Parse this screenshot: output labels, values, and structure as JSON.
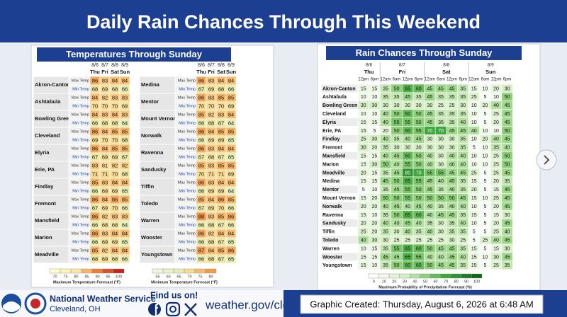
{
  "title": "Daily Rain Chances Through This Weekend",
  "temperatures": {
    "title": "Temperatures Through Sunday",
    "dates": [
      "8/6",
      "8/7",
      "8/8",
      "8/9"
    ],
    "days": [
      "Thu",
      "Fri",
      "Sat",
      "Sun"
    ],
    "row_labels": [
      "Max Temp",
      "Min Temp"
    ],
    "cities": [
      {
        "name": "Akron-Canton",
        "max": [
          86,
          83,
          84,
          84
        ],
        "min": [
          68,
          69,
          68,
          66
        ]
      },
      {
        "name": "Ashtabula",
        "max": [
          84,
          82,
          83,
          83
        ],
        "min": [
          70,
          70,
          70,
          69
        ]
      },
      {
        "name": "Bowling Green",
        "max": [
          84,
          83,
          84,
          83
        ],
        "min": [
          66,
          68,
          68,
          64
        ]
      },
      {
        "name": "Cleveland",
        "max": [
          86,
          84,
          85,
          85
        ],
        "min": [
          69,
          70,
          70,
          68
        ]
      },
      {
        "name": "Elyria",
        "max": [
          86,
          84,
          85,
          85
        ],
        "min": [
          67,
          69,
          69,
          67
        ]
      },
      {
        "name": "Erie, PA",
        "max": [
          83,
          81,
          82,
          82
        ],
        "min": [
          71,
          71,
          70,
          68
        ]
      },
      {
        "name": "Findlay",
        "max": [
          85,
          83,
          84,
          84
        ],
        "min": [
          66,
          69,
          69,
          65
        ]
      },
      {
        "name": "Fremont",
        "max": [
          86,
          84,
          86,
          85
        ],
        "min": [
          67,
          69,
          70,
          66
        ]
      },
      {
        "name": "Mansfield",
        "max": [
          86,
          82,
          83,
          83
        ],
        "min": [
          66,
          68,
          68,
          64
        ]
      },
      {
        "name": "Marion",
        "max": [
          86,
          83,
          84,
          84
        ],
        "min": [
          66,
          69,
          69,
          65
        ]
      },
      {
        "name": "Meadville",
        "max": [
          85,
          82,
          84,
          84
        ],
        "min": [
          68,
          69,
          68,
          66
        ]
      },
      {
        "name": "Medina",
        "max": [
          86,
          83,
          84,
          84
        ],
        "min": [
          67,
          69,
          68,
          66
        ]
      },
      {
        "name": "Mentor",
        "max": [
          86,
          83,
          85,
          85
        ],
        "min": [
          70,
          70,
          70,
          69
        ]
      },
      {
        "name": "Mount Vernon",
        "max": [
          85,
          82,
          83,
          84
        ],
        "min": [
          66,
          68,
          67,
          64
        ]
      },
      {
        "name": "Norwalk",
        "max": [
          86,
          84,
          85,
          85
        ],
        "min": [
          66,
          69,
          69,
          65
        ]
      },
      {
        "name": "Ravenna",
        "max": [
          86,
          83,
          84,
          84
        ],
        "min": [
          67,
          68,
          67,
          65
        ]
      },
      {
        "name": "Sandusky",
        "max": [
          85,
          83,
          85,
          85
        ],
        "min": [
          70,
          71,
          71,
          69
        ]
      },
      {
        "name": "Tiffin",
        "max": [
          86,
          83,
          84,
          84
        ],
        "min": [
          66,
          69,
          69,
          64
        ]
      },
      {
        "name": "Toledo",
        "max": [
          85,
          84,
          86,
          85
        ],
        "min": [
          67,
          69,
          70,
          66
        ]
      },
      {
        "name": "Warren",
        "max": [
          88,
          83,
          85,
          86
        ],
        "min": [
          66,
          68,
          67,
          66
        ]
      },
      {
        "name": "Wooster",
        "max": [
          86,
          82,
          84,
          84
        ],
        "min": [
          66,
          68,
          67,
          65
        ]
      },
      {
        "name": "Youngstown",
        "max": [
          87,
          84,
          85,
          86
        ],
        "min": [
          66,
          68,
          67,
          65
        ]
      }
    ],
    "legend_max": {
      "ticks": [
        70,
        75,
        80,
        85,
        90,
        95,
        100
      ],
      "label": "Maximum Temperature Forecast (°F)"
    },
    "legend_min": {
      "ticks": [
        55,
        60,
        65,
        70,
        75,
        80
      ],
      "label": "Minimum Temperature Forecast (°F)"
    }
  },
  "rain": {
    "title": "Rain Chances Through Sunday",
    "dates": [
      "8/6",
      "8/7",
      "8/8",
      "8/9"
    ],
    "days": [
      "Thu",
      "Fri",
      "Sat",
      "Sun"
    ],
    "times": [
      "12pm",
      "6pm",
      "12am",
      "6am",
      "12pm",
      "6pm",
      "12am",
      "6am",
      "12pm",
      "6pm",
      "12am",
      "6am",
      "12pm",
      "6pm"
    ],
    "cities": [
      {
        "name": "Akron-Canton",
        "values": [
          15,
          15,
          35,
          50,
          65,
          60,
          45,
          45,
          45,
          35,
          15,
          10,
          20,
          30
        ]
      },
      {
        "name": "Ashtabula",
        "values": [
          10,
          10,
          35,
          35,
          45,
          35,
          45,
          35,
          35,
          35,
          25,
          5,
          10,
          50
        ]
      },
      {
        "name": "Bowling Green",
        "values": [
          30,
          30,
          30,
          30,
          30,
          30,
          30,
          25,
          25,
          30,
          10,
          20,
          40,
          45
        ]
      },
      {
        "name": "Cleveland",
        "values": [
          10,
          10,
          40,
          50,
          60,
          50,
          45,
          35,
          35,
          35,
          10,
          5,
          25,
          45
        ]
      },
      {
        "name": "Elyria",
        "values": [
          15,
          15,
          40,
          55,
          55,
          50,
          45,
          35,
          35,
          40,
          10,
          5,
          20,
          45
        ]
      },
      {
        "name": "Erie, PA",
        "values": [
          15,
          5,
          20,
          50,
          60,
          55,
          70,
          70,
          45,
          45,
          40,
          10,
          10,
          50
        ]
      },
      {
        "name": "Findlay",
        "values": [
          25,
          30,
          40,
          35,
          40,
          45,
          30,
          30,
          30,
          35,
          10,
          20,
          40,
          45
        ]
      },
      {
        "name": "Fremont",
        "values": [
          30,
          20,
          35,
          30,
          30,
          30,
          30,
          30,
          30,
          35,
          5,
          10,
          35,
          40
        ]
      },
      {
        "name": "Mansfield",
        "values": [
          15,
          15,
          40,
          45,
          60,
          50,
          40,
          30,
          40,
          40,
          10,
          10,
          25,
          50
        ]
      },
      {
        "name": "Marion",
        "values": [
          15,
          30,
          50,
          40,
          55,
          50,
          40,
          30,
          40,
          40,
          10,
          10,
          25,
          50
        ]
      },
      {
        "name": "Meadville",
        "values": [
          20,
          15,
          35,
          45,
          80,
          70,
          55,
          55,
          45,
          45,
          25,
          5,
          25,
          45
        ]
      },
      {
        "name": "Medina",
        "values": [
          15,
          15,
          45,
          50,
          65,
          55,
          45,
          40,
          45,
          35,
          15,
          5,
          20,
          35
        ]
      },
      {
        "name": "Mentor",
        "values": [
          5,
          10,
          35,
          45,
          55,
          50,
          45,
          35,
          40,
          35,
          20,
          5,
          15,
          45
        ]
      },
      {
        "name": "Mount Vernon",
        "values": [
          15,
          20,
          50,
          50,
          55,
          50,
          50,
          50,
          50,
          45,
          15,
          10,
          25,
          45
        ]
      },
      {
        "name": "Norwalk",
        "values": [
          20,
          20,
          40,
          45,
          40,
          45,
          40,
          35,
          40,
          40,
          10,
          5,
          20,
          45
        ]
      },
      {
        "name": "Ravenna",
        "values": [
          15,
          10,
          35,
          50,
          65,
          60,
          40,
          45,
          45,
          35,
          15,
          5,
          15,
          30
        ]
      },
      {
        "name": "Sandusky",
        "values": [
          20,
          20,
          40,
          40,
          45,
          40,
          35,
          30,
          35,
          40,
          10,
          5,
          20,
          45
        ]
      },
      {
        "name": "Tiffin",
        "values": [
          25,
          20,
          35,
          30,
          40,
          35,
          40,
          30,
          35,
          35,
          5,
          5,
          25,
          40
        ]
      },
      {
        "name": "Toledo",
        "values": [
          40,
          30,
          30,
          25,
          25,
          25,
          25,
          25,
          30,
          25,
          5,
          25,
          40,
          45
        ]
      },
      {
        "name": "Warren",
        "values": [
          10,
          15,
          35,
          55,
          65,
          60,
          50,
          45,
          45,
          35,
          15,
          5,
          15,
          30
        ]
      },
      {
        "name": "Wooster",
        "values": [
          15,
          15,
          45,
          45,
          65,
          55,
          40,
          40,
          45,
          40,
          15,
          10,
          30,
          45
        ]
      },
      {
        "name": "Youngstown",
        "values": [
          15,
          10,
          35,
          50,
          60,
          60,
          50,
          45,
          45,
          35,
          15,
          5,
          25,
          35
        ]
      }
    ],
    "legend": {
      "ticks": [
        0,
        10,
        20,
        30,
        40,
        50,
        60,
        70,
        80,
        90,
        100
      ],
      "label": "Maximum Probability of Precipitation Forecast (%)"
    }
  },
  "footer": {
    "agency": "National Weather Service",
    "office": "Cleveland, OH",
    "social": "Find us on!",
    "website": "weather.gov/cle",
    "created": "Graphic Created: Thursday, August 6, 2026 at 6:48 AM"
  }
}
